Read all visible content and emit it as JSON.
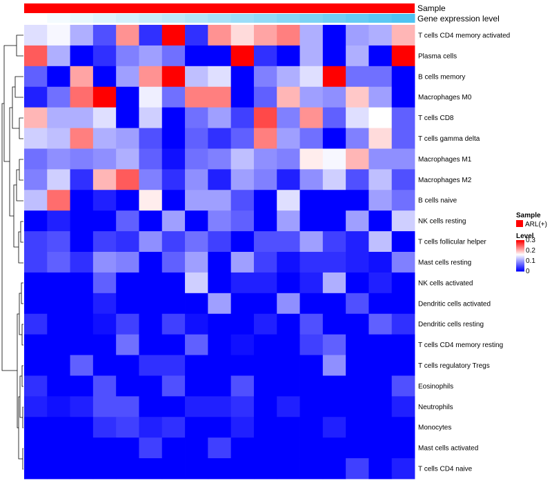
{
  "chart_data": {
    "type": "heatmap",
    "title": "",
    "annotation_tracks": [
      {
        "label": "Sample",
        "color": "#ff0000"
      },
      {
        "label": "Gene expression level",
        "gradient": [
          "#ffffff",
          "#4fc3f2"
        ]
      }
    ],
    "legend": {
      "sample_title": "Sample",
      "sample_entry": "ARL(+)",
      "sample_color": "#ff0000",
      "level_title": "Level",
      "level_ticks": [
        {
          "label": "0.3",
          "value": 0.3
        },
        {
          "label": "0.2",
          "value": 0.2
        },
        {
          "label": "0.1",
          "value": 0.1
        },
        {
          "label": "0",
          "value": 0
        }
      ],
      "scale": {
        "min": 0,
        "mid": 0.16,
        "max": 0.3,
        "low": "#0000ff",
        "mid_color": "#ffffff",
        "high": "#ff0000"
      }
    },
    "rows": [
      "T cells CD4 memory activated",
      "Plasma cells",
      "B cells memory",
      "Macrophages M0",
      "T cells CD8",
      "T cells gamma delta",
      "Macrophages M1",
      "Macrophages M2",
      "B cells naive",
      "NK cells resting",
      "T cells follicular helper",
      "Mast cells resting",
      "NK cells activated",
      "Dendritic cells activated",
      "Dendritic cells resting",
      "T cells CD4 memory resting",
      "T cells regulatory  Tregs",
      "Eosinophils",
      "Neutrophils",
      "Monocytes",
      "Mast cells activated",
      "T cells CD4 naive"
    ],
    "n_columns": 17,
    "values": [
      [
        0.14,
        0.155,
        0.11,
        0.05,
        0.22,
        0.03,
        0.3,
        0.03,
        0.22,
        0.18,
        0.21,
        0.23,
        0.11,
        0.0,
        0.1,
        0.11,
        0.2
      ],
      [
        0.25,
        0.11,
        0.0,
        0.03,
        0.08,
        0.1,
        0.07,
        0.0,
        0.0,
        0.3,
        0.03,
        0.0,
        0.11,
        0.0,
        0.11,
        0.0,
        0.3
      ],
      [
        0.06,
        0.0,
        0.21,
        0.0,
        0.1,
        0.22,
        0.3,
        0.12,
        0.14,
        0.0,
        0.08,
        0.11,
        0.14,
        0.3,
        0.07,
        0.07,
        0.0
      ],
      [
        0.02,
        0.07,
        0.24,
        0.3,
        0.0,
        0.15,
        0.07,
        0.23,
        0.23,
        0.0,
        0.06,
        0.2,
        0.1,
        0.09,
        0.19,
        0.1,
        0.0
      ],
      [
        0.2,
        0.11,
        0.11,
        0.14,
        0.0,
        0.13,
        0.0,
        0.07,
        0.1,
        0.04,
        0.26,
        0.08,
        0.22,
        0.06,
        0.14,
        0.16,
        0.06
      ],
      [
        0.13,
        0.12,
        0.23,
        0.11,
        0.1,
        0.05,
        0.0,
        0.06,
        0.03,
        0.06,
        0.23,
        0.1,
        0.07,
        0.0,
        0.08,
        0.18,
        0.06
      ],
      [
        0.07,
        0.09,
        0.08,
        0.09,
        0.11,
        0.06,
        0.01,
        0.07,
        0.08,
        0.12,
        0.09,
        0.08,
        0.17,
        0.155,
        0.2,
        0.09,
        0.09
      ],
      [
        0.08,
        0.13,
        0.03,
        0.2,
        0.25,
        0.08,
        0.03,
        0.09,
        0.02,
        0.1,
        0.08,
        0.02,
        0.09,
        0.13,
        0.05,
        0.12,
        0.05
      ],
      [
        0.12,
        0.24,
        0.0,
        0.02,
        0.0,
        0.17,
        0.0,
        0.1,
        0.1,
        0.05,
        0.0,
        0.14,
        0.0,
        0.0,
        0.0,
        0.1,
        0.07
      ],
      [
        0.0,
        0.02,
        0.0,
        0.0,
        0.06,
        0.0,
        0.1,
        0.0,
        0.08,
        0.06,
        0.0,
        0.1,
        0.0,
        0.0,
        0.1,
        0.0,
        0.13
      ],
      [
        0.04,
        0.05,
        0.0,
        0.04,
        0.03,
        0.09,
        0.04,
        0.07,
        0.04,
        0.0,
        0.05,
        0.05,
        0.1,
        0.04,
        0.02,
        0.12,
        0.0
      ],
      [
        0.04,
        0.06,
        0.03,
        0.09,
        0.08,
        0.0,
        0.06,
        0.1,
        0.0,
        0.1,
        0.04,
        0.01,
        0.03,
        0.03,
        0.02,
        0.01,
        0.08
      ],
      [
        0.0,
        0.0,
        0.0,
        0.06,
        0.0,
        0.0,
        0.0,
        0.13,
        0.0,
        0.02,
        0.02,
        0.0,
        0.02,
        0.11,
        0.0,
        0.02,
        0.0
      ],
      [
        0.0,
        0.0,
        0.0,
        0.02,
        0.0,
        0.0,
        0.0,
        0.0,
        0.1,
        0.0,
        0.0,
        0.09,
        0.0,
        0.0,
        0.05,
        0.0,
        0.0
      ],
      [
        0.03,
        0.0,
        0.0,
        0.01,
        0.04,
        0.0,
        0.04,
        0.01,
        0.0,
        0.0,
        0.02,
        0.0,
        0.05,
        0.0,
        0.0,
        0.06,
        0.03
      ],
      [
        0.0,
        0.0,
        0.0,
        0.0,
        0.07,
        0.0,
        0.0,
        0.06,
        0.0,
        0.01,
        0.0,
        0.0,
        0.04,
        0.06,
        0.0,
        0.0,
        0.0
      ],
      [
        0.0,
        0.0,
        0.06,
        0.0,
        0.0,
        0.03,
        0.03,
        0.0,
        0.0,
        0.0,
        0.0,
        0.0,
        0.0,
        0.09,
        0.0,
        0.0,
        0.0
      ],
      [
        0.03,
        0.0,
        0.0,
        0.05,
        0.0,
        0.0,
        0.05,
        0.0,
        0.0,
        0.05,
        0.0,
        0.0,
        0.0,
        0.0,
        0.0,
        0.0,
        0.05
      ],
      [
        0.02,
        0.01,
        0.02,
        0.05,
        0.05,
        0.0,
        0.0,
        0.02,
        0.02,
        0.03,
        0.0,
        0.02,
        0.0,
        0.0,
        0.0,
        0.0,
        0.02
      ],
      [
        0.0,
        0.0,
        0.0,
        0.03,
        0.04,
        0.02,
        0.03,
        0.0,
        0.0,
        0.02,
        0.0,
        0.0,
        0.0,
        0.02,
        0.0,
        0.0,
        0.0
      ],
      [
        0.0,
        0.0,
        0.0,
        0.0,
        0.0,
        0.04,
        0.0,
        0.0,
        0.04,
        0.0,
        0.0,
        0.0,
        0.0,
        0.0,
        0.0,
        0.0,
        0.0
      ],
      [
        0.0,
        0.0,
        0.0,
        0.0,
        0.0,
        0.0,
        0.0,
        0.0,
        0.0,
        0.0,
        0.0,
        0.0,
        0.0,
        0.0,
        0.04,
        0.0,
        0.02
      ]
    ]
  }
}
